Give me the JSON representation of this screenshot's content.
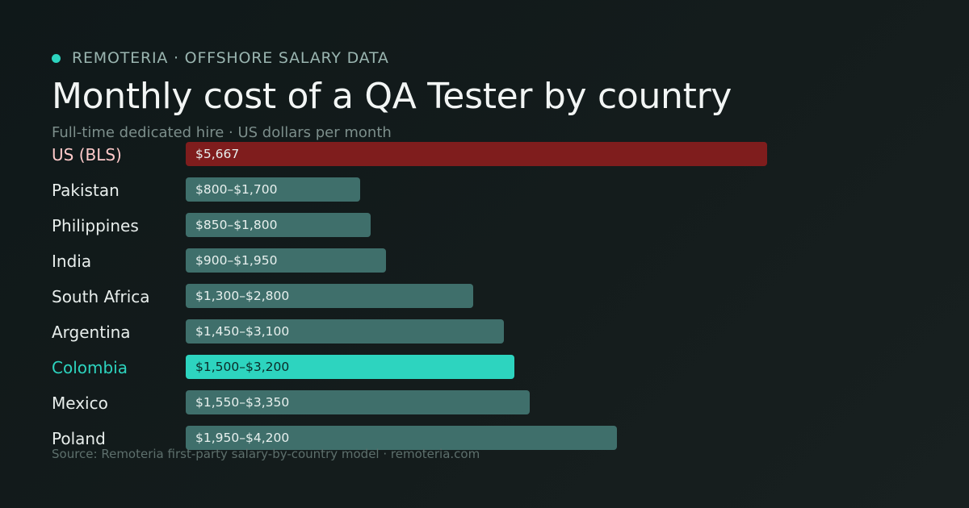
{
  "brand": {
    "label": "REMOTERIA · OFFSHORE SALARY DATA"
  },
  "header": {
    "title": "Monthly cost of a QA Tester by country",
    "subtitle": "Full-time dedicated hire · US dollars per month"
  },
  "footer": {
    "source": "Source: Remoteria first-party salary-by-country model · remoteria.com"
  },
  "colors": {
    "accent": "#2dd4bf",
    "benchmark_bar": "#7f1d1d",
    "benchmark_label": "#fecaca",
    "default_bar": "#3f6f6b",
    "highlight_bar": "#2dd4bf",
    "highlight_label": "#2dd4bf"
  },
  "chart_data": {
    "type": "bar",
    "orientation": "horizontal",
    "xlim": [
      0,
      6300
    ],
    "categories": [
      "US (BLS)",
      "Pakistan",
      "Philippines",
      "India",
      "South Africa",
      "Argentina",
      "Colombia",
      "Mexico",
      "Poland"
    ],
    "ranges": [
      [
        5667,
        5667
      ],
      [
        800,
        1700
      ],
      [
        850,
        1800
      ],
      [
        900,
        1950
      ],
      [
        1300,
        2800
      ],
      [
        1450,
        3100
      ],
      [
        1500,
        3200
      ],
      [
        1550,
        3350
      ],
      [
        1950,
        4200
      ]
    ],
    "value_labels": [
      "$5,667",
      "$800–$1,700",
      "$850–$1,800",
      "$900–$1,950",
      "$1,300–$2,800",
      "$1,450–$3,100",
      "$1,500–$3,200",
      "$1,550–$3,350",
      "$1,950–$4,200"
    ],
    "benchmark_category": "US (BLS)",
    "highlight_category": "Colombia"
  }
}
